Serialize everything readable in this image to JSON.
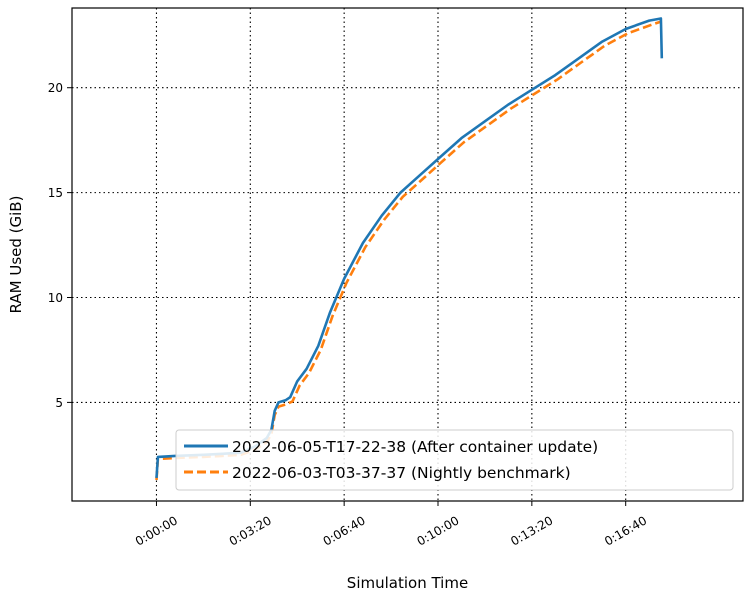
{
  "chart_data": {
    "type": "line",
    "xlabel": "Simulation Time",
    "ylabel": "RAM Used (GiB)",
    "x_unit": "seconds",
    "xlim": [
      -180,
      1250
    ],
    "ylim": [
      0.3,
      23.8
    ],
    "xticks": [
      {
        "value": 0,
        "label": "0:00:00"
      },
      {
        "value": 200,
        "label": "0:03:20"
      },
      {
        "value": 400,
        "label": "0:06:40"
      },
      {
        "value": 600,
        "label": "0:10:00"
      },
      {
        "value": 800,
        "label": "0:13:20"
      },
      {
        "value": 1000,
        "label": "0:16:40"
      }
    ],
    "yticks": [
      {
        "value": 5,
        "label": "5"
      },
      {
        "value": 10,
        "label": "10"
      },
      {
        "value": 15,
        "label": "15"
      },
      {
        "value": 20,
        "label": "20"
      }
    ],
    "grid": true,
    "legend_position": "lower-right",
    "series": [
      {
        "name": "2022-06-05-T17-22-38 (After container update)",
        "color": "#1f77b4",
        "style": "solid",
        "x": [
          0,
          3,
          40,
          100,
          140,
          180,
          210,
          235,
          245,
          252,
          260,
          275,
          285,
          300,
          320,
          345,
          370,
          400,
          440,
          480,
          520,
          560,
          600,
          650,
          700,
          750,
          800,
          850,
          900,
          950,
          1000,
          1050,
          1075,
          1077
        ],
        "y": [
          1.4,
          2.4,
          2.45,
          2.5,
          2.55,
          2.6,
          2.9,
          3.3,
          3.7,
          4.6,
          5.0,
          5.1,
          5.25,
          6.0,
          6.6,
          7.7,
          9.3,
          10.9,
          12.6,
          13.9,
          15.0,
          15.8,
          16.6,
          17.6,
          18.4,
          19.2,
          19.9,
          20.6,
          21.4,
          22.2,
          22.8,
          23.2,
          23.3,
          21.4
        ]
      },
      {
        "name": "2022-06-03-T03-37-37 (Nightly benchmark)",
        "color": "#ff7f0e",
        "style": "dashed",
        "x": [
          0,
          3,
          40,
          100,
          140,
          180,
          210,
          235,
          245,
          252,
          260,
          275,
          290,
          305,
          325,
          350,
          375,
          405,
          445,
          485,
          525,
          565,
          605,
          655,
          705,
          755,
          805,
          855,
          905,
          955,
          1005,
          1055,
          1075
        ],
        "y": [
          1.3,
          2.3,
          2.35,
          2.4,
          2.45,
          2.5,
          2.75,
          3.1,
          3.5,
          4.4,
          4.8,
          4.9,
          5.05,
          5.8,
          6.4,
          7.5,
          9.1,
          10.7,
          12.4,
          13.7,
          14.8,
          15.6,
          16.4,
          17.4,
          18.2,
          19.0,
          19.7,
          20.4,
          21.2,
          22.0,
          22.6,
          23.0,
          23.15
        ]
      }
    ]
  }
}
